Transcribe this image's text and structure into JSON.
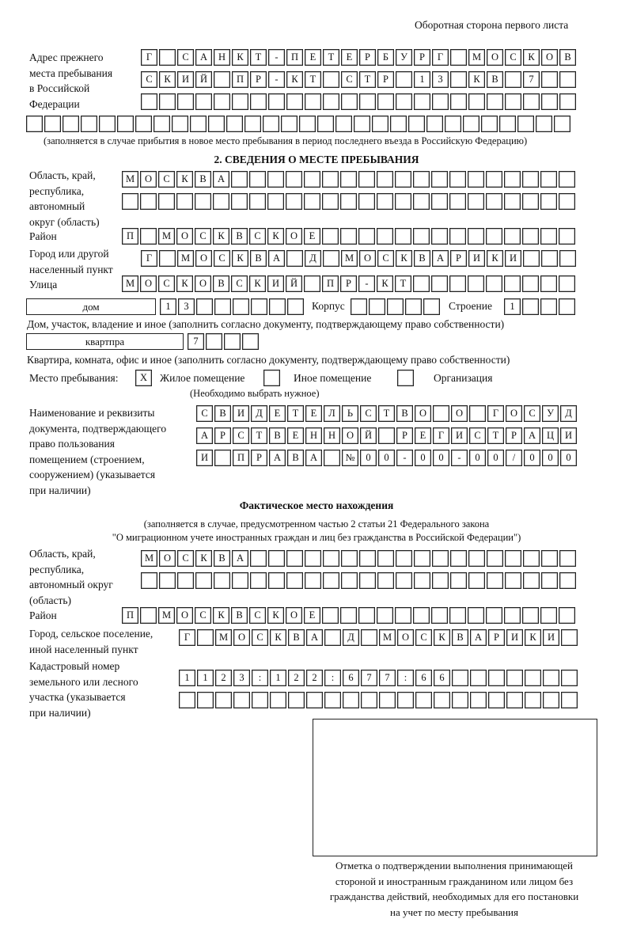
{
  "page_header": "Оборотная сторона первого листа",
  "previous_address": {
    "label": [
      "Адрес прежнего",
      "места пребывания",
      "в Российской",
      "Федерации"
    ],
    "rows": [
      "Г САНКТ-ПЕТЕРБУРГ МОСКОВ",
      "СКИЙ ПР-КТ СТР 13 КВ 7  ",
      "                        "
    ],
    "bottom_row": "                              ",
    "hint": "(заполняется в случае прибытия в новое место пребывания в период последнего въезда в Российскую Федерацию)"
  },
  "section2": {
    "title": "2. СВЕДЕНИЯ О МЕСТЕ ПРЕБЫВАНИЯ",
    "region": {
      "label": [
        "Область, край,",
        "республика,",
        "автономный",
        "округ (область)"
      ],
      "rows": [
        "МОСКВА                   ",
        "                         "
      ]
    },
    "district": {
      "label": "Район",
      "row": "П МОСКВСКОЕ              "
    },
    "city": {
      "label": [
        "Город или другой",
        "населенный пункт"
      ],
      "row": "Г МОСКВА Д МОСКВАРИКИ   "
    },
    "street": {
      "label": "Улица",
      "row": "МОСКОВСКИЙ ПР-КТ         "
    },
    "house": {
      "type": "дом",
      "number": "13      ",
      "korpus_label": "Корпус",
      "korpus": "     ",
      "building_label": "Строение",
      "building": "1   ",
      "hint": "Дом, участок, владение и иное (заполнить согласно документу, подтверждающему право собственности)"
    },
    "apartment": {
      "type": "квартпра",
      "number": "7   ",
      "hint": "Квартира, комната, офис и иное (заполнить согласно документу, подтверждающему право собственности)"
    },
    "stay_place": {
      "label": "Место пребывания:",
      "options": [
        {
          "label": "Жилое помещение",
          "mark": "X",
          "checked": true
        },
        {
          "label": "Иное помещение",
          "mark": "",
          "checked": false
        },
        {
          "label": "Организация",
          "mark": "",
          "checked": false
        }
      ],
      "hint": "(Необходимо выбрать нужное)"
    },
    "document": {
      "label": [
        "Наименование и реквизиты",
        "документа, подтверждающего",
        "право пользования",
        "помещением (строением,",
        "сооружением) (указывается",
        "при наличии)"
      ],
      "rows": [
        "СВИДЕТЕЛЬСТВО О ГОСУД",
        "АРСТВЕННОЙ РЕГИСТРАЦИ",
        "И ПРАВА №00-00-00/000"
      ]
    }
  },
  "actual_location": {
    "title": "Фактическое место нахождения",
    "hint1": "(заполняется в случае, предусмотренном частью 2 статьи 21 Федерального закона",
    "hint2": "\"О миграционном учете иностранных граждан и лиц без гражданства в Российской Федерации\")",
    "region": {
      "label": [
        "Область, край,",
        "республика,",
        "автономный округ",
        "(область)"
      ],
      "rows": [
        "МОСКВА                  ",
        "                        "
      ]
    },
    "district": {
      "label": "Район",
      "row": "П МОСКВСКОЕ              "
    },
    "city": {
      "label": [
        "Город, сельское поселение,",
        "иной населенный пункт"
      ],
      "row": "Г МОСКВА Д МОСКВАРИКИ "
    },
    "cadastre": {
      "label": [
        "Кадастровый номер",
        "земельного или лесного",
        "участка (указывается",
        "при наличии)"
      ],
      "rows": [
        "1123:122:677:66       ",
        "                      "
      ]
    }
  },
  "confirmation": {
    "caption": [
      "Отметка о подтверждении выполнения принимающей",
      "стороной и иностранным гражданином или лицом без",
      "гражданства действий, необходимых для его постановки",
      "на учет по месту пребывания"
    ]
  }
}
